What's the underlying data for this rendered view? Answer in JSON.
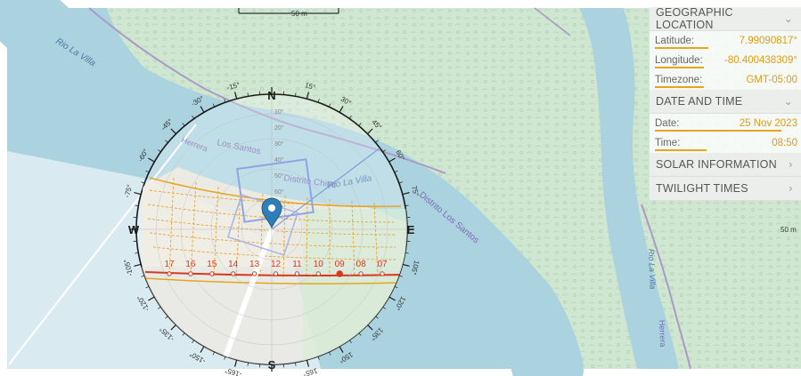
{
  "map": {
    "scale_top": "50 m",
    "scale_right": "50 m",
    "river_labels": [
      "Rio La Villa",
      "Rio La Villa",
      "Rio La Villa"
    ],
    "place_labels": [
      "Los Santos",
      "Distrito Chitre",
      "Distrito Los Santos",
      "Herrera",
      "Herrera"
    ],
    "colors": {
      "water": "#aad3df",
      "land": "#cfe6d0",
      "accent": "#e7a51e",
      "sun_path": "#d9371d"
    }
  },
  "compass": {
    "cardinals": {
      "n": "N",
      "e": "E",
      "s": "S",
      "w": "W"
    },
    "bearing_ticks": [
      "15°",
      "30°",
      "45°",
      "60°",
      "75°",
      "105°",
      "120°",
      "135°",
      "150°",
      "165°",
      "-15°",
      "-30°",
      "-45°",
      "-60°",
      "-75°",
      "-105°",
      "-120°",
      "-135°",
      "-150°",
      "-165°"
    ],
    "elevation_ticks": [
      "10°",
      "20°",
      "30°",
      "40°",
      "50°",
      "60°",
      "70°"
    ],
    "hours": [
      "17",
      "16",
      "15",
      "14",
      "13",
      "12",
      "11",
      "10",
      "09",
      "08",
      "07"
    ],
    "current_hour": "09"
  },
  "panel": {
    "geo": {
      "title": "GEOGRAPHIC LOCATION",
      "latitude_label": "Latitude:",
      "latitude_value": "7.99090817°",
      "longitude_label": "Longitude:",
      "longitude_value": "-80.400438309°",
      "timezone_label": "Timezone:",
      "timezone_value": "GMT-05:00"
    },
    "date": {
      "title": "DATE AND TIME",
      "date_label": "Date:",
      "date_value": "25 Nov 2023",
      "time_label": "Time:",
      "time_value": "08:50",
      "date_progress": 0.9,
      "time_progress": 0.37
    },
    "solar": {
      "title": "SOLAR INFORMATION"
    },
    "twilight": {
      "title": "TWILIGHT TIMES"
    }
  }
}
